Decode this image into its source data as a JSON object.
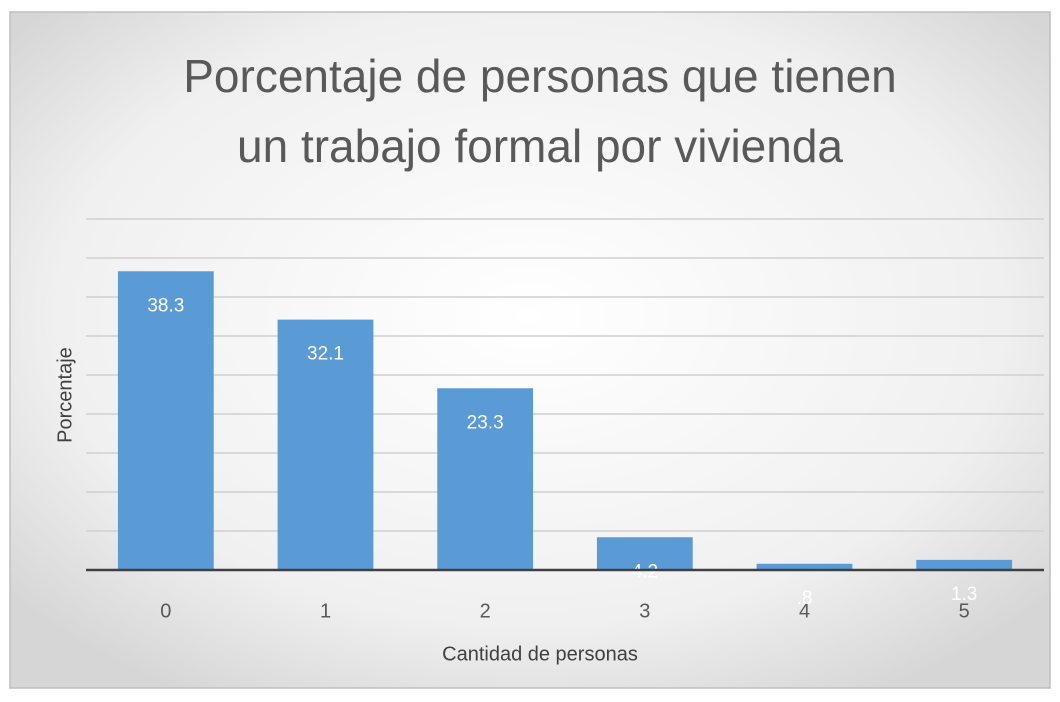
{
  "chart_data": {
    "type": "bar",
    "title": [
      "Porcentaje de personas que tienen",
      "un trabajo formal por vivienda"
    ],
    "xlabel": "Cantidad de personas",
    "ylabel": "Porcentaje",
    "categories": [
      "0",
      "1",
      "2",
      "3",
      "4",
      "5"
    ],
    "values": [
      38.3,
      32.1,
      23.3,
      4.2,
      0.8,
      1.3
    ],
    "value_labels": [
      "38.3",
      "32.1",
      "23.3",
      "4.2",
      ".8",
      "1.3"
    ],
    "color": "#5b9bd5",
    "ylim": [
      0,
      45
    ],
    "yticks": [
      0,
      5,
      10,
      15,
      20,
      25,
      30,
      35,
      40,
      45
    ],
    "show_ytick_labels": false,
    "grid": true
  }
}
